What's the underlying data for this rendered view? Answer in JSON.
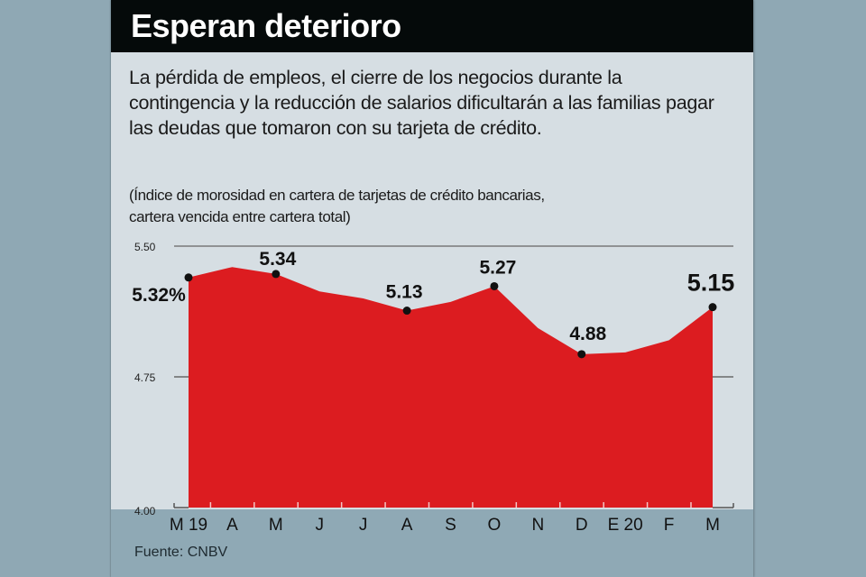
{
  "header": {
    "title": "Esperan deterioro"
  },
  "description": "La pérdida de empleos, el cierre de los negocios durante la contingencia y la reducción de salarios dificultarán a las familias pagar las deudas que tomaron con su tarjeta de crédito.",
  "subtitle_lines": [
    "(Índice de morosidad en cartera de tarjetas de crédito bancarias,",
    "cartera vencida entre cartera total)"
  ],
  "source": "Fuente: CNBV",
  "colors": {
    "area": "#dc1c20",
    "background": "#d6dee3",
    "outer": "#8fa9b5",
    "header": "#050a0a"
  },
  "chart_data": {
    "type": "area",
    "title": "Esperan deterioro",
    "xlabel": "",
    "ylabel": "",
    "categories": [
      "M 19",
      "A",
      "M",
      "J",
      "J",
      "A",
      "S",
      "O",
      "N",
      "D",
      "E 20",
      "F",
      "M"
    ],
    "values": [
      5.32,
      5.38,
      5.34,
      5.24,
      5.2,
      5.13,
      5.18,
      5.27,
      5.03,
      4.88,
      4.89,
      4.96,
      5.15
    ],
    "ylim": [
      4.0,
      5.5
    ],
    "yticks": [
      "5.50",
      "4.75",
      "4.00"
    ],
    "ytick_values": [
      5.5,
      4.75,
      4.0
    ],
    "data_labels": [
      {
        "index": 0,
        "text": "5.32%"
      },
      {
        "index": 2,
        "text": "5.34"
      },
      {
        "index": 5,
        "text": "5.13"
      },
      {
        "index": 7,
        "text": "5.27"
      },
      {
        "index": 9,
        "text": "4.88"
      },
      {
        "index": 12,
        "text": "5.15"
      }
    ],
    "grid": true,
    "legend": "none"
  }
}
